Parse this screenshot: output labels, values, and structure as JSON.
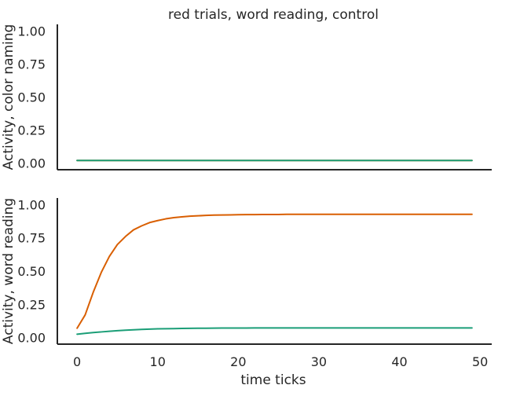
{
  "title": "red trials, word reading, control",
  "xlabel": "time ticks",
  "colors": {
    "series_a": "#d95f02",
    "series_b": "#1b9e77",
    "axis": "#262626"
  },
  "chart_data": [
    {
      "type": "line",
      "title": "red trials, word reading, control",
      "xlabel": "",
      "ylabel": "Activity, color naming",
      "xlim": [
        -2.45,
        51.45
      ],
      "ylim": [
        -0.05,
        1.05
      ],
      "yticks": [
        "0.00",
        "0.25",
        "0.50",
        "0.75",
        "1.00"
      ],
      "xticks": [],
      "grid": false,
      "x": [
        0,
        49
      ],
      "series": [
        {
          "color": "#d95f02",
          "values": [
            0.02,
            0.02
          ]
        },
        {
          "color": "#1b9e77",
          "values": [
            0.02,
            0.02
          ]
        }
      ]
    },
    {
      "type": "line",
      "title": "",
      "xlabel": "time ticks",
      "ylabel": "Activity, word reading",
      "xlim": [
        -2.45,
        51.45
      ],
      "ylim": [
        -0.05,
        1.05
      ],
      "yticks": [
        "0.00",
        "0.25",
        "0.50",
        "0.75",
        "1.00"
      ],
      "xticks": [
        "0",
        "10",
        "20",
        "30",
        "40",
        "50"
      ],
      "grid": false,
      "x": [
        0,
        1,
        2,
        3,
        4,
        5,
        6,
        7,
        8,
        9,
        10,
        11,
        12,
        13,
        14,
        15,
        16,
        17,
        18,
        19,
        20,
        21,
        22,
        23,
        24,
        25,
        26,
        27,
        28,
        29,
        30,
        31,
        32,
        33,
        34,
        35,
        36,
        37,
        38,
        39,
        40,
        41,
        42,
        43,
        44,
        45,
        46,
        47,
        48,
        49
      ],
      "series": [
        {
          "color": "#d95f02",
          "values": [
            0.07,
            0.17,
            0.34,
            0.49,
            0.61,
            0.7,
            0.76,
            0.81,
            0.84,
            0.865,
            0.88,
            0.893,
            0.902,
            0.908,
            0.913,
            0.916,
            0.919,
            0.921,
            0.922,
            0.923,
            0.924,
            0.925,
            0.925,
            0.926,
            0.926,
            0.926,
            0.927,
            0.927,
            0.927,
            0.927,
            0.927,
            0.927,
            0.927,
            0.927,
            0.927,
            0.927,
            0.927,
            0.927,
            0.927,
            0.927,
            0.927,
            0.927,
            0.927,
            0.927,
            0.927,
            0.927,
            0.927,
            0.927,
            0.927,
            0.927
          ]
        },
        {
          "color": "#1b9e77",
          "values": [
            0.025,
            0.031,
            0.037,
            0.042,
            0.047,
            0.051,
            0.055,
            0.058,
            0.061,
            0.063,
            0.065,
            0.066,
            0.067,
            0.068,
            0.069,
            0.0695,
            0.07,
            0.0705,
            0.071,
            0.071,
            0.0715,
            0.0715,
            0.072,
            0.072,
            0.072,
            0.072,
            0.072,
            0.072,
            0.072,
            0.072,
            0.072,
            0.072,
            0.072,
            0.072,
            0.072,
            0.072,
            0.072,
            0.072,
            0.072,
            0.072,
            0.072,
            0.072,
            0.072,
            0.072,
            0.072,
            0.072,
            0.072,
            0.072,
            0.072,
            0.072
          ]
        }
      ]
    }
  ]
}
